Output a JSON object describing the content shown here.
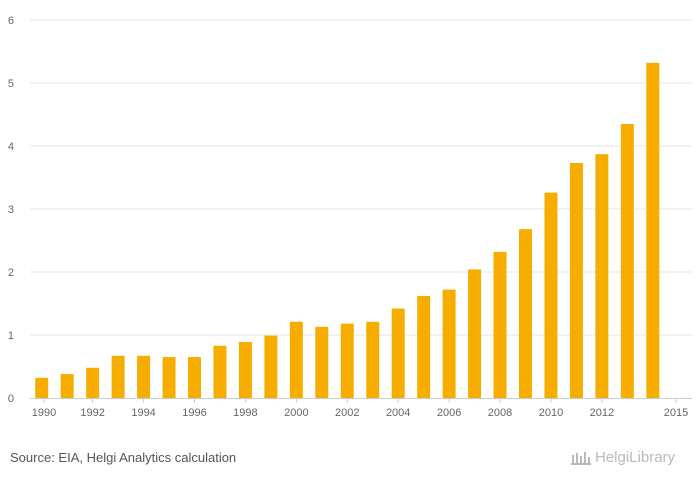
{
  "chart_data": {
    "type": "bar",
    "categories": [
      "1990",
      "1991",
      "1992",
      "1993",
      "1994",
      "1995",
      "1996",
      "1997",
      "1998",
      "1999",
      "2000",
      "2001",
      "2002",
      "2003",
      "2004",
      "2005",
      "2006",
      "2007",
      "2008",
      "2009",
      "2010",
      "2011",
      "2012",
      "2013",
      "2014",
      "2015"
    ],
    "x_tick_labels": [
      "1990",
      "1992",
      "1994",
      "1996",
      "1998",
      "2000",
      "2002",
      "2004",
      "2006",
      "2008",
      "2010",
      "2012",
      "2015"
    ],
    "values": [
      0.32,
      0.38,
      0.48,
      0.67,
      0.67,
      0.65,
      0.65,
      0.83,
      0.89,
      0.99,
      1.21,
      1.13,
      1.18,
      1.21,
      1.42,
      1.62,
      1.72,
      2.04,
      2.32,
      2.68,
      3.26,
      3.73,
      3.87,
      4.35,
      5.32,
      null
    ],
    "ylim": [
      0,
      6
    ],
    "yticks": [
      0,
      1,
      2,
      3,
      4,
      5,
      6
    ],
    "title": "",
    "xlabel": "",
    "ylabel": "",
    "bar_color": "#f7ad00",
    "grid_color": "#e6e6e6",
    "grid": true
  },
  "footer": {
    "source": "Source: EIA, Helgi Analytics calculation",
    "logo_text": "HelgiLibrary"
  }
}
